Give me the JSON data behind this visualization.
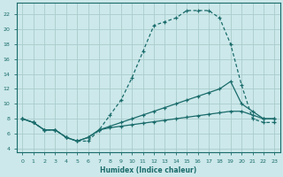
{
  "xlabel": "Humidex (Indice chaleur)",
  "bg_color": "#cce8ea",
  "grid_color": "#aacccc",
  "line_color": "#1a6b6b",
  "xlim": [
    -0.5,
    23.5
  ],
  "ylim": [
    3.5,
    23.5
  ],
  "xticks": [
    0,
    1,
    2,
    3,
    4,
    5,
    6,
    7,
    8,
    9,
    10,
    11,
    12,
    13,
    14,
    15,
    16,
    17,
    18,
    19,
    20,
    21,
    22,
    23
  ],
  "yticks": [
    4,
    6,
    8,
    10,
    12,
    14,
    16,
    18,
    20,
    22
  ],
  "line1_x": [
    0,
    1,
    2,
    3,
    4,
    5,
    6,
    7,
    8,
    9,
    10,
    11,
    12,
    13,
    14,
    15,
    16,
    17,
    18,
    19,
    20,
    21,
    22,
    23
  ],
  "line1_y": [
    8,
    7.5,
    6.5,
    6.5,
    5.5,
    5.0,
    5.0,
    6.5,
    8.5,
    10.5,
    13.5,
    17.0,
    20.5,
    21.0,
    21.5,
    22.5,
    22.5,
    22.5,
    21.5,
    18.0,
    12.5,
    8.0,
    7.5,
    7.5
  ],
  "line2_x": [
    0,
    1,
    2,
    3,
    4,
    5,
    6,
    7,
    8,
    9,
    10,
    11,
    12,
    13,
    14,
    15,
    16,
    17,
    18,
    19,
    20,
    21,
    22,
    23
  ],
  "line2_y": [
    8,
    7.5,
    6.5,
    6.5,
    5.5,
    5.0,
    5.5,
    6.5,
    7.0,
    7.5,
    8.0,
    8.5,
    9.0,
    9.5,
    10.0,
    10.5,
    11.0,
    11.5,
    12.0,
    13.0,
    10.0,
    9.0,
    8.0,
    8.0
  ],
  "line3_x": [
    0,
    1,
    2,
    3,
    4,
    5,
    6,
    7,
    8,
    9,
    10,
    11,
    12,
    13,
    14,
    15,
    16,
    17,
    18,
    19,
    20,
    21,
    22,
    23
  ],
  "line3_y": [
    8,
    7.5,
    6.5,
    6.5,
    5.5,
    5.0,
    5.5,
    6.5,
    6.8,
    7.0,
    7.2,
    7.4,
    7.6,
    7.8,
    8.0,
    8.2,
    8.4,
    8.6,
    8.8,
    9.0,
    9.0,
    8.5,
    8.0,
    8.0
  ]
}
